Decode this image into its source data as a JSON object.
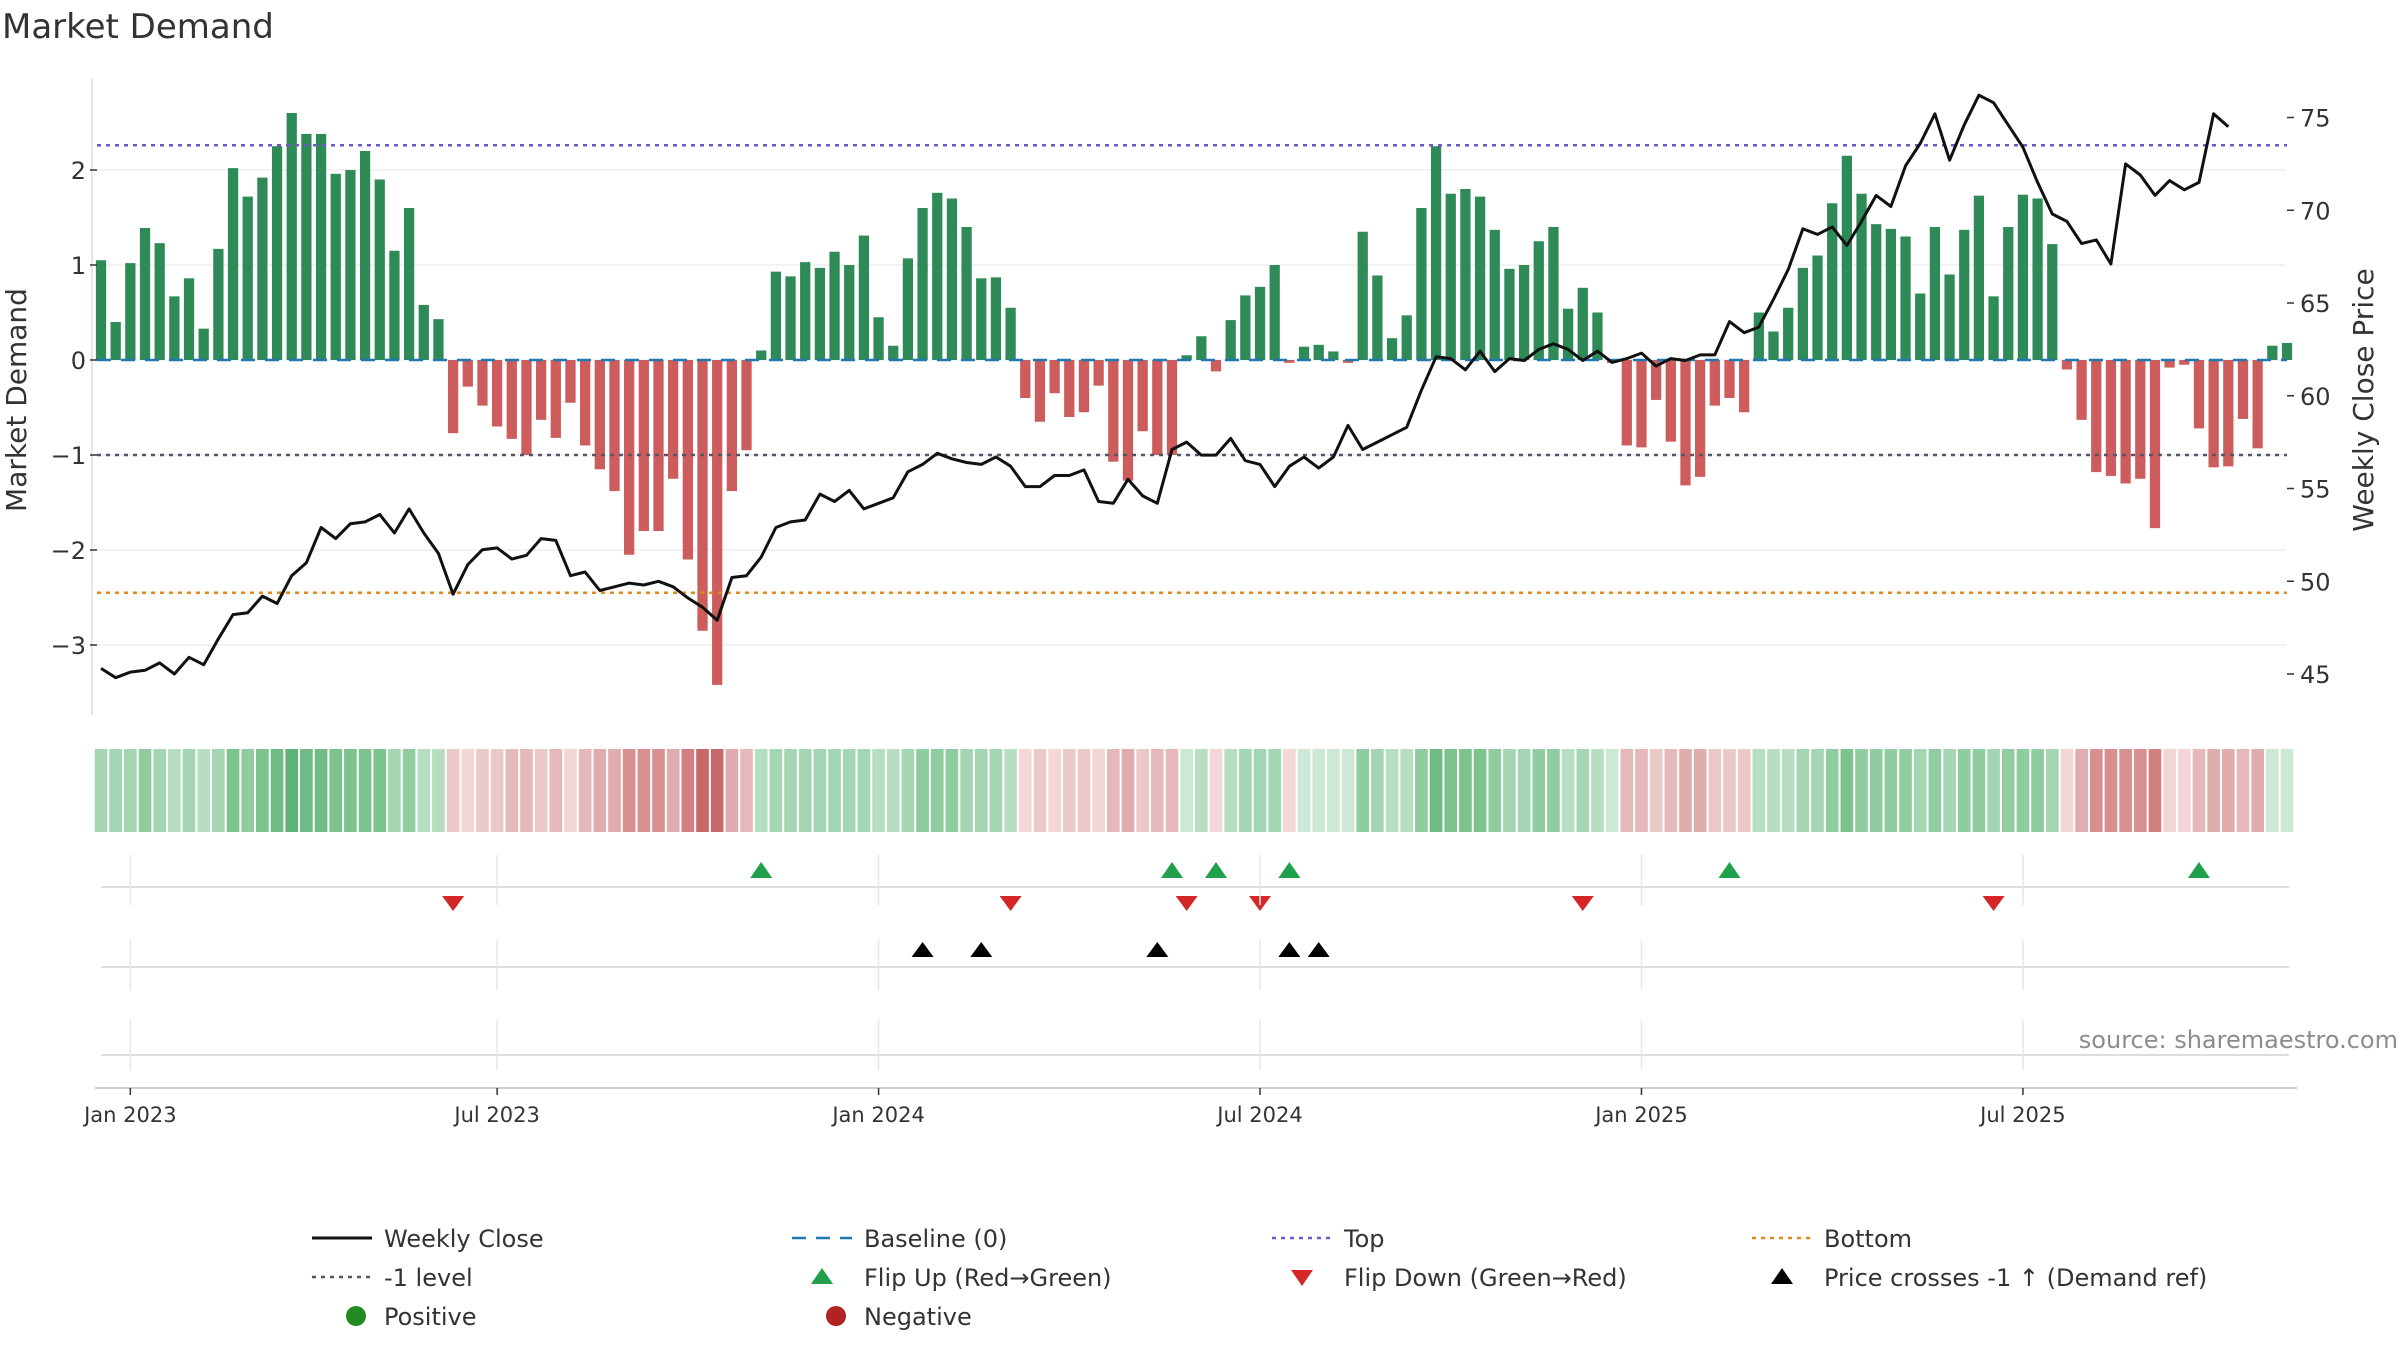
{
  "chart_data": {
    "type": "bar",
    "title": "Market Demand",
    "ylabel": "Market Demand",
    "y2label": "Weekly Close Price",
    "source": "source: sharemaestro.com",
    "ylim": [
      -3.75,
      2.95
    ],
    "y2lim": [
      44,
      77.2
    ],
    "yticks": [
      2,
      1,
      0,
      -1,
      -2,
      -3
    ],
    "yticklabels": [
      "2",
      "1",
      "0",
      "−1",
      "−2",
      "−3"
    ],
    "y2ticks": [
      75,
      70,
      65,
      60,
      55,
      50,
      45
    ],
    "y2ticklabels": [
      "75",
      "70",
      "65",
      "60",
      "55",
      "50",
      "45"
    ],
    "reference_lines": {
      "top": 2.26,
      "bottom": -2.45,
      "level_minus1": -1,
      "baseline": 0
    },
    "x_ticks": [
      {
        "week": 2,
        "label": "Jan 2023"
      },
      {
        "week": 27,
        "label": "Jul 2023"
      },
      {
        "week": 53,
        "label": "Jan 2024"
      },
      {
        "week": 79,
        "label": "Jul 2024"
      },
      {
        "week": 105,
        "label": "Jan 2025"
      },
      {
        "week": 131,
        "label": "Jul 2025"
      }
    ],
    "demand": [
      1.05,
      0.4,
      1.02,
      1.39,
      1.23,
      0.67,
      0.86,
      0.33,
      1.17,
      2.02,
      1.72,
      1.92,
      2.25,
      2.6,
      2.38,
      2.38,
      1.96,
      2.0,
      2.2,
      1.9,
      1.15,
      1.6,
      0.58,
      0.43,
      -0.77,
      -0.28,
      -0.48,
      -0.7,
      -0.83,
      -1.0,
      -0.63,
      -0.82,
      -0.45,
      -0.9,
      -1.15,
      -1.38,
      -2.05,
      -1.8,
      -1.8,
      -1.25,
      -2.1,
      -2.85,
      -3.42,
      -1.38,
      -0.95,
      0.1,
      0.93,
      0.88,
      1.03,
      0.97,
      1.14,
      1.0,
      1.31,
      0.45,
      0.15,
      1.07,
      1.6,
      1.76,
      1.7,
      1.4,
      0.86,
      0.87,
      0.55,
      -0.4,
      -0.65,
      -0.35,
      -0.6,
      -0.55,
      -0.27,
      -1.07,
      -1.27,
      -0.75,
      -1.0,
      -1.0,
      0.05,
      0.25,
      -0.12,
      0.42,
      0.68,
      0.77,
      1.0,
      -0.03,
      0.14,
      0.16,
      0.09,
      -0.03,
      1.35,
      0.89,
      0.23,
      0.47,
      1.6,
      2.25,
      1.75,
      1.8,
      1.72,
      1.37,
      0.96,
      1.0,
      1.25,
      1.4,
      0.54,
      0.76,
      0.5,
      -0.03,
      -0.9,
      -0.92,
      -0.42,
      -0.86,
      -1.32,
      -1.23,
      -0.48,
      -0.4,
      -0.55,
      0.5,
      0.3,
      0.55,
      0.97,
      1.1,
      1.65,
      2.15,
      1.75,
      1.43,
      1.38,
      1.3,
      0.7,
      1.4,
      0.9,
      1.37,
      1.73,
      0.67,
      1.4,
      1.74,
      1.7,
      1.22,
      -0.1,
      -0.63,
      -1.18,
      -1.22,
      -1.3,
      -1.25,
      -1.77,
      -0.08,
      -0.05,
      -0.72,
      -1.13,
      -1.12,
      -0.62,
      -0.93,
      0.15,
      0.18
    ],
    "weekly_close": [
      45.3,
      44.8,
      45.1,
      45.2,
      45.6,
      45.0,
      45.9,
      45.5,
      46.9,
      48.2,
      48.3,
      49.2,
      48.8,
      50.3,
      51.0,
      52.9,
      52.3,
      53.1,
      53.2,
      53.6,
      52.6,
      53.9,
      52.6,
      51.5,
      49.3,
      50.9,
      51.7,
      51.8,
      51.2,
      51.4,
      52.3,
      52.2,
      50.3,
      50.5,
      49.5,
      49.7,
      49.9,
      49.8,
      50.0,
      49.7,
      49.1,
      48.6,
      47.9,
      50.2,
      50.3,
      51.3,
      52.9,
      53.2,
      53.3,
      54.7,
      54.3,
      54.9,
      53.9,
      54.2,
      54.5,
      55.9,
      56.3,
      56.9,
      56.6,
      56.4,
      56.3,
      56.7,
      56.2,
      55.1,
      55.1,
      55.7,
      55.7,
      56.0,
      54.3,
      54.2,
      55.5,
      54.6,
      54.2,
      57.1,
      57.5,
      56.8,
      56.8,
      57.7,
      56.5,
      56.3,
      55.1,
      56.2,
      56.7,
      56.1,
      56.7,
      58.4,
      57.1,
      57.5,
      57.9,
      58.3,
      60.3,
      62.1,
      62.0,
      61.4,
      62.4,
      61.3,
      62.0,
      61.9,
      62.5,
      62.8,
      62.5,
      61.9,
      62.4,
      61.8,
      62.0,
      62.3,
      61.6,
      62.0,
      61.9,
      62.2,
      62.2,
      64.0,
      63.4,
      63.7,
      65.2,
      66.8,
      69.0,
      68.7,
      69.1,
      68.1,
      69.4,
      70.8,
      70.2,
      72.4,
      73.6,
      75.2,
      72.7,
      74.6,
      76.2,
      75.8,
      74.6,
      73.4,
      71.5,
      69.8,
      69.4,
      68.2,
      68.4,
      67.1,
      72.5,
      71.9,
      70.8,
      71.6,
      71.1,
      71.5,
      75.2,
      74.5
    ],
    "shade_colors": [
      "#a5d6b3",
      "#a5d6b3",
      "#a5d6b3",
      "#8fcc9f",
      "#a5d6b3",
      "#b8dec2",
      "#a5d6b3",
      "#b8dec2",
      "#a5d6b3",
      "#7cc38e",
      "#8fcc9f",
      "#7cc38e",
      "#6fbb83",
      "#5fb277",
      "#6fbb83",
      "#6fbb83",
      "#7cc38e",
      "#7cc38e",
      "#7cc38e",
      "#7cc38e",
      "#a5d6b3",
      "#8fcc9f",
      "#b8dec2",
      "#b8dec2",
      "#ecc9c9",
      "#f3d6d6",
      "#ecc9c9",
      "#ecc9c9",
      "#e5b9b9",
      "#e5b9b9",
      "#ecc9c9",
      "#e5b9b9",
      "#f3d6d6",
      "#e5b9b9",
      "#dfadad",
      "#dfadad",
      "#d88f8f",
      "#d88f8f",
      "#d88f8f",
      "#dfadad",
      "#d27f7f",
      "#c96868",
      "#c96868",
      "#dfadad",
      "#e5b9b9",
      "#b8dec2",
      "#a5d6b3",
      "#a5d6b3",
      "#a5d6b3",
      "#a5d6b3",
      "#a5d6b3",
      "#a5d6b3",
      "#a5d6b3",
      "#b8dec2",
      "#b8dec2",
      "#a5d6b3",
      "#8fcc9f",
      "#8fcc9f",
      "#8fcc9f",
      "#a5d6b3",
      "#a5d6b3",
      "#a5d6b3",
      "#b8dec2",
      "#f3d6d6",
      "#ecc9c9",
      "#f3d6d6",
      "#ecc9c9",
      "#ecc9c9",
      "#f3d6d6",
      "#e5b9b9",
      "#dfadad",
      "#ecc9c9",
      "#e5b9b9",
      "#e5b9b9",
      "#cde8d4",
      "#b8dec2",
      "#f3d6d6",
      "#b8dec2",
      "#a5d6b3",
      "#a5d6b3",
      "#a5d6b3",
      "#f3d6d6",
      "#cde8d4",
      "#cde8d4",
      "#cde8d4",
      "#cde8d4",
      "#8fcc9f",
      "#a5d6b3",
      "#b8dec2",
      "#b8dec2",
      "#8fcc9f",
      "#6fbb83",
      "#7cc38e",
      "#7cc38e",
      "#7cc38e",
      "#8fcc9f",
      "#a5d6b3",
      "#a5d6b3",
      "#8fcc9f",
      "#8fcc9f",
      "#b8dec2",
      "#a5d6b3",
      "#b8dec2",
      "#cde8d4",
      "#e5b9b9",
      "#e5b9b9",
      "#ecc9c9",
      "#e5b9b9",
      "#dfadad",
      "#dfadad",
      "#ecc9c9",
      "#ecc9c9",
      "#ecc9c9",
      "#b8dec2",
      "#b8dec2",
      "#b8dec2",
      "#a5d6b3",
      "#a5d6b3",
      "#8fcc9f",
      "#7cc38e",
      "#8fcc9f",
      "#8fcc9f",
      "#8fcc9f",
      "#8fcc9f",
      "#a5d6b3",
      "#8fcc9f",
      "#a5d6b3",
      "#8fcc9f",
      "#8fcc9f",
      "#a5d6b3",
      "#8fcc9f",
      "#8fcc9f",
      "#8fcc9f",
      "#a5d6b3",
      "#f3d6d6",
      "#dfadad",
      "#d88f8f",
      "#d88f8f",
      "#d88f8f",
      "#d88f8f",
      "#d27f7f",
      "#f3d6d6",
      "#f3d6d6",
      "#e5b9b9",
      "#dfadad",
      "#dfadad",
      "#e5b9b9",
      "#dfadad",
      "#cde8d4",
      "#cde8d4"
    ],
    "flip_up_weeks": [
      45,
      73,
      76,
      81,
      111,
      143
    ],
    "flip_down_weeks": [
      24,
      62,
      74,
      79,
      101,
      129
    ],
    "price_cross_weeks": [
      56,
      60,
      72,
      81,
      83
    ],
    "colors": {
      "positive_bar": "#2e8b57",
      "negative_bar": "#cd5c5c",
      "close_line": "#111111",
      "baseline": "#1f77b4",
      "top": "#6a5acd",
      "bottom": "#e08a1e",
      "minus1": "#555566",
      "flip_up": "#1fa04a",
      "flip_down": "#d62728",
      "cross": "#000000",
      "positive_dot": "#228b22",
      "negative_dot": "#b22222"
    },
    "legend": [
      {
        "label": "Weekly Close",
        "kind": "line",
        "color": "#111111"
      },
      {
        "label": "Baseline (0)",
        "kind": "dash",
        "color": "#1f77b4"
      },
      {
        "label": "Top",
        "kind": "dot",
        "color": "#6a5acd"
      },
      {
        "label": "Bottom",
        "kind": "dot",
        "color": "#e08a1e"
      },
      {
        "label": "-1 level",
        "kind": "dot",
        "color": "#555566"
      },
      {
        "label": "Flip Up (Red→Green)",
        "kind": "tri-up",
        "color": "#1fa04a"
      },
      {
        "label": "Flip Down (Green→Red)",
        "kind": "tri-down",
        "color": "#d62728"
      },
      {
        "label": "Price crosses -1 ↑ (Demand ref)",
        "kind": "tri-up",
        "color": "#000000"
      },
      {
        "label": "Positive",
        "kind": "circle",
        "color": "#228b22"
      },
      {
        "label": "Negative",
        "kind": "circle",
        "color": "#b22222"
      }
    ]
  }
}
